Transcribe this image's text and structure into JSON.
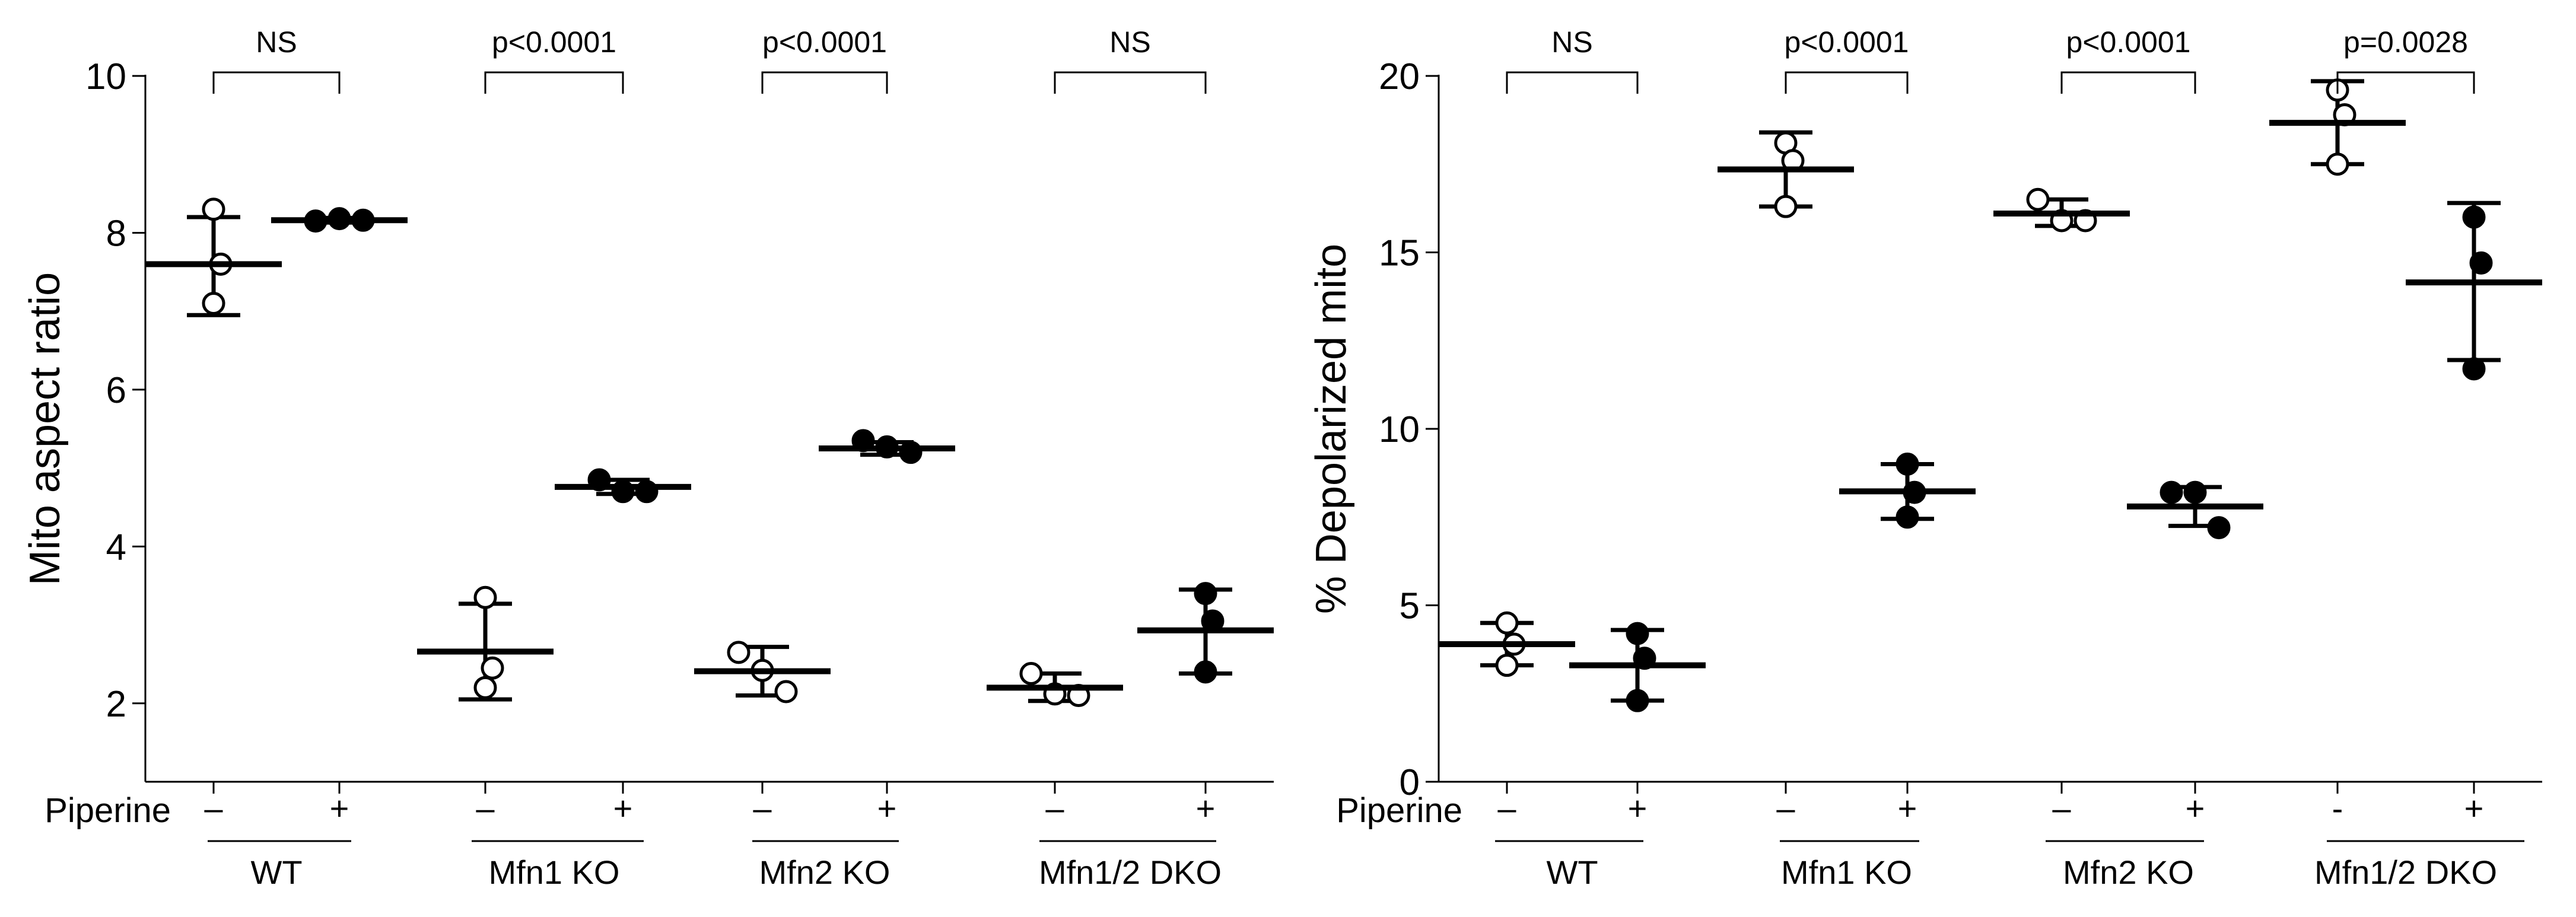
{
  "colors": {
    "ink": "#000000",
    "background": "#ffffff"
  },
  "labels": {
    "treatment": "Piperine",
    "minus": "–",
    "plus": "+",
    "minus_alt": "-"
  },
  "chart_data": [
    {
      "type": "scatter",
      "title": "",
      "ylabel": "Mito aspect ratio",
      "ylim": [
        1,
        10
      ],
      "yticks": [
        2,
        4,
        6,
        8,
        10
      ],
      "groups": [
        "WT",
        "Mfn1 KO",
        "Mfn2 KO",
        "Mfn1/2 DKO"
      ],
      "treatment_signs": [
        "–",
        "+",
        "–",
        "+",
        "–",
        "+",
        "–",
        "+"
      ],
      "series": [
        {
          "name": "WT –",
          "piperine": false,
          "points": [
            8.3,
            7.6,
            7.1
          ],
          "mean": 7.6,
          "sd_low": 6.95,
          "sd_high": 8.2
        },
        {
          "name": "WT +",
          "piperine": true,
          "points": [
            8.15,
            8.18,
            8.16
          ],
          "mean": 8.16,
          "sd_low": 8.13,
          "sd_high": 8.19
        },
        {
          "name": "Mfn1 KO –",
          "piperine": false,
          "points": [
            3.35,
            2.45,
            2.2
          ],
          "mean": 2.66,
          "sd_low": 2.05,
          "sd_high": 3.27
        },
        {
          "name": "Mfn1 KO +",
          "piperine": true,
          "points": [
            4.85,
            4.7,
            4.7
          ],
          "mean": 4.76,
          "sd_low": 4.67,
          "sd_high": 4.85
        },
        {
          "name": "Mfn2 KO –",
          "piperine": false,
          "points": [
            2.65,
            2.42,
            2.15
          ],
          "mean": 2.41,
          "sd_low": 2.1,
          "sd_high": 2.72
        },
        {
          "name": "Mfn2 KO +",
          "piperine": true,
          "points": [
            5.35,
            5.27,
            5.2
          ],
          "mean": 5.25,
          "sd_low": 5.17,
          "sd_high": 5.33
        },
        {
          "name": "Mfn1/2 DKO –",
          "piperine": false,
          "points": [
            2.38,
            2.12,
            2.1
          ],
          "mean": 2.2,
          "sd_low": 2.03,
          "sd_high": 2.38
        },
        {
          "name": "Mfn1/2 DKO +",
          "piperine": true,
          "points": [
            3.4,
            3.05,
            2.4
          ],
          "mean": 2.93,
          "sd_low": 2.38,
          "sd_high": 3.45
        }
      ],
      "comparisons": [
        {
          "group": "WT",
          "label": "NS"
        },
        {
          "group": "Mfn1 KO",
          "label": "p<0.0001"
        },
        {
          "group": "Mfn2 KO",
          "label": "p<0.0001"
        },
        {
          "group": "Mfn1/2 DKO",
          "label": "NS"
        }
      ]
    },
    {
      "type": "scatter",
      "title": "",
      "ylabel": "% Depolarized mito",
      "ylim": [
        0,
        20
      ],
      "yticks": [
        0,
        5,
        10,
        15,
        20
      ],
      "groups": [
        "WT",
        "Mfn1 KO",
        "Mfn2 KO",
        "Mfn1/2 DKO"
      ],
      "treatment_signs": [
        "–",
        "+",
        "–",
        "+",
        "–",
        "+",
        "-",
        "+"
      ],
      "series": [
        {
          "name": "WT –",
          "piperine": false,
          "points": [
            4.5,
            3.9,
            3.3
          ],
          "mean": 3.9,
          "sd_low": 3.3,
          "sd_high": 4.5
        },
        {
          "name": "WT +",
          "piperine": true,
          "points": [
            4.2,
            3.5,
            2.3
          ],
          "mean": 3.3,
          "sd_low": 2.3,
          "sd_high": 4.3
        },
        {
          "name": "Mfn1 KO –",
          "piperine": false,
          "points": [
            18.1,
            17.6,
            16.3
          ],
          "mean": 17.35,
          "sd_low": 16.3,
          "sd_high": 18.4
        },
        {
          "name": "Mfn1 KO +",
          "piperine": true,
          "points": [
            9.0,
            8.2,
            7.5
          ],
          "mean": 8.23,
          "sd_low": 7.45,
          "sd_high": 9.0
        },
        {
          "name": "Mfn2 KO –",
          "piperine": false,
          "points": [
            16.5,
            15.9,
            15.9
          ],
          "mean": 16.1,
          "sd_low": 15.75,
          "sd_high": 16.5
        },
        {
          "name": "Mfn2 KO +",
          "piperine": true,
          "points": [
            8.2,
            8.2,
            7.2
          ],
          "mean": 7.8,
          "sd_low": 7.25,
          "sd_high": 8.35
        },
        {
          "name": "Mfn1/2 DKO –",
          "piperine": false,
          "points": [
            19.6,
            18.9,
            17.5
          ],
          "mean": 18.67,
          "sd_low": 17.5,
          "sd_high": 19.85
        },
        {
          "name": "Mfn1/2 DKO +",
          "piperine": true,
          "points": [
            16.0,
            14.7,
            11.7
          ],
          "mean": 14.15,
          "sd_low": 11.95,
          "sd_high": 16.4
        }
      ],
      "comparisons": [
        {
          "group": "WT",
          "label": "NS"
        },
        {
          "group": "Mfn1 KO",
          "label": "p<0.0001"
        },
        {
          "group": "Mfn2 KO",
          "label": "p<0.0001"
        },
        {
          "group": "Mfn1/2 DKO",
          "label": "p=0.0028"
        }
      ]
    }
  ]
}
